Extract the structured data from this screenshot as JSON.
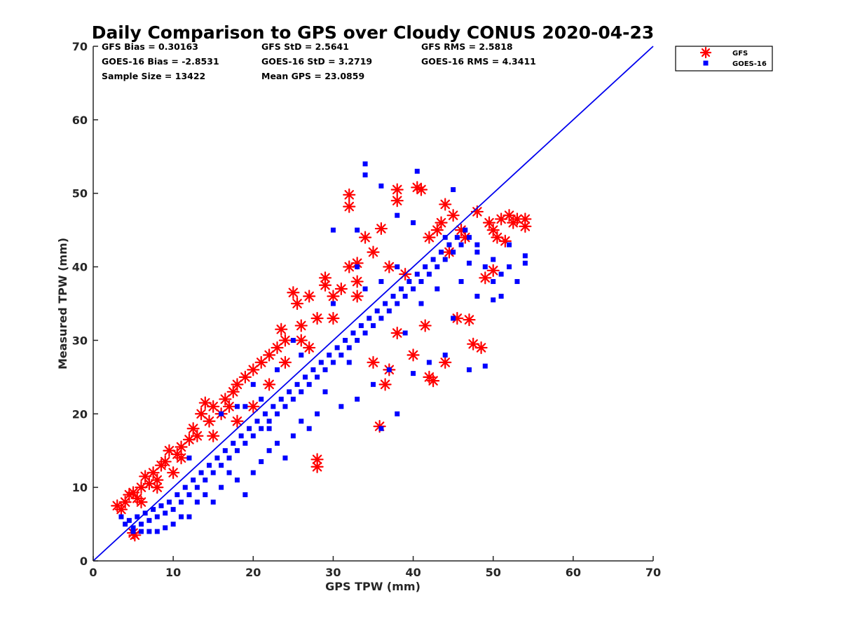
{
  "chart_data": {
    "type": "scatter",
    "title": "Daily Comparison to GPS over Cloudy CONUS 2020-04-23",
    "xlabel": "GPS TPW (mm)",
    "ylabel": "Measured TPW (mm)",
    "xlim": [
      0,
      70
    ],
    "ylim": [
      0,
      70
    ],
    "xticks": [
      "0",
      "10",
      "20",
      "30",
      "40",
      "50",
      "60",
      "70"
    ],
    "yticks": [
      "0",
      "10",
      "20",
      "30",
      "40",
      "50",
      "60",
      "70"
    ],
    "grid": false,
    "legend_position": "outside-top-right",
    "stats": [
      [
        "GFS Bias = 0.30163",
        "GFS StD = 2.5641",
        "GFS RMS = 2.5818"
      ],
      [
        "GOES-16 Bias = -2.8531",
        "GOES-16 StD = 3.2719",
        "GOES-16 RMS = 4.3411"
      ],
      [
        "Sample Size = 13422",
        "Mean GPS = 23.0859"
      ]
    ],
    "reference_line": {
      "x": [
        0,
        70
      ],
      "y": [
        0,
        70
      ],
      "color": "#0000ee"
    },
    "series": [
      {
        "name": "GFS",
        "marker": "asterisk",
        "color": "#ff0000",
        "points": [
          [
            3,
            7.5
          ],
          [
            3.5,
            7
          ],
          [
            4,
            8
          ],
          [
            4.5,
            9
          ],
          [
            5,
            9.3
          ],
          [
            5,
            3.8
          ],
          [
            5.2,
            3.5
          ],
          [
            5.5,
            8.5
          ],
          [
            6,
            10
          ],
          [
            6.5,
            11.5
          ],
          [
            7,
            10.5
          ],
          [
            7.5,
            12
          ],
          [
            8,
            11
          ],
          [
            8.5,
            13
          ],
          [
            9,
            13.5
          ],
          [
            9.5,
            15
          ],
          [
            10,
            12
          ],
          [
            10.5,
            14.5
          ],
          [
            11,
            15.5
          ],
          [
            12,
            16.5
          ],
          [
            12.5,
            18
          ],
          [
            13,
            17
          ],
          [
            13.5,
            20
          ],
          [
            14,
            21.5
          ],
          [
            14.5,
            19
          ],
          [
            15,
            21
          ],
          [
            16,
            20
          ],
          [
            16.5,
            22
          ],
          [
            17,
            21
          ],
          [
            17.5,
            23
          ],
          [
            18,
            24
          ],
          [
            19,
            25
          ],
          [
            20,
            26
          ],
          [
            21,
            27
          ],
          [
            22,
            28
          ],
          [
            23,
            29
          ],
          [
            23.5,
            31.5
          ],
          [
            24,
            30
          ],
          [
            25,
            36.5
          ],
          [
            25.5,
            35
          ],
          [
            26,
            32
          ],
          [
            27,
            36
          ],
          [
            28,
            33
          ],
          [
            28,
            13.8
          ],
          [
            28,
            12.8
          ],
          [
            29,
            37.5
          ],
          [
            29,
            38.5
          ],
          [
            30,
            36
          ],
          [
            31,
            37
          ],
          [
            32,
            40
          ],
          [
            32,
            49.8
          ],
          [
            32,
            48.2
          ],
          [
            33,
            40.5
          ],
          [
            33,
            38
          ],
          [
            34,
            44
          ],
          [
            35,
            42
          ],
          [
            35.8,
            18.3
          ],
          [
            36,
            45.2
          ],
          [
            36.5,
            24
          ],
          [
            37,
            26
          ],
          [
            38,
            50.5
          ],
          [
            38,
            49
          ],
          [
            39,
            39
          ],
          [
            40,
            28
          ],
          [
            40.5,
            50.8
          ],
          [
            41,
            50.5
          ],
          [
            41.5,
            32
          ],
          [
            42,
            44
          ],
          [
            42.5,
            24.5
          ],
          [
            43,
            45
          ],
          [
            43.5,
            46
          ],
          [
            44,
            48.5
          ],
          [
            44.5,
            42
          ],
          [
            45,
            47
          ],
          [
            45.5,
            33
          ],
          [
            46,
            45
          ],
          [
            46.5,
            44
          ],
          [
            47,
            32.8
          ],
          [
            47.5,
            29.5
          ],
          [
            48,
            47.5
          ],
          [
            48.5,
            29
          ],
          [
            49,
            38.5
          ],
          [
            49.5,
            46
          ],
          [
            50,
            45
          ],
          [
            50.5,
            44
          ],
          [
            51,
            46.5
          ],
          [
            51.5,
            43.5
          ],
          [
            52,
            47
          ],
          [
            52.5,
            46
          ],
          [
            53,
            46.5
          ],
          [
            54,
            45.5
          ],
          [
            54,
            46.5
          ],
          [
            50,
            39.5
          ],
          [
            44,
            27
          ],
          [
            42,
            25
          ],
          [
            38,
            31
          ],
          [
            35,
            27
          ],
          [
            30,
            33
          ],
          [
            27,
            29
          ],
          [
            22,
            24
          ],
          [
            18,
            19
          ],
          [
            15,
            17
          ],
          [
            11,
            14
          ],
          [
            8,
            10
          ],
          [
            6,
            8
          ],
          [
            20,
            21
          ],
          [
            24,
            27
          ],
          [
            26,
            30
          ],
          [
            33,
            36
          ],
          [
            37,
            40
          ]
        ]
      },
      {
        "name": "GOES-16",
        "marker": "square",
        "color": "#0000ff",
        "points": [
          [
            3.5,
            6
          ],
          [
            4,
            5
          ],
          [
            4.5,
            5.5
          ],
          [
            5,
            4.5
          ],
          [
            5.5,
            6
          ],
          [
            6,
            5
          ],
          [
            6.5,
            6.5
          ],
          [
            7,
            5.5
          ],
          [
            7.5,
            7
          ],
          [
            8,
            6
          ],
          [
            8.5,
            7.5
          ],
          [
            9,
            6.5
          ],
          [
            9.5,
            8
          ],
          [
            10,
            7
          ],
          [
            10.5,
            9
          ],
          [
            11,
            8
          ],
          [
            11.5,
            10
          ],
          [
            12,
            9
          ],
          [
            12.5,
            11
          ],
          [
            13,
            10
          ],
          [
            13.5,
            12
          ],
          [
            14,
            11
          ],
          [
            14.5,
            13
          ],
          [
            15,
            12
          ],
          [
            15.5,
            14
          ],
          [
            16,
            13
          ],
          [
            16.5,
            15
          ],
          [
            17,
            14
          ],
          [
            17.5,
            16
          ],
          [
            18,
            15
          ],
          [
            18.5,
            17
          ],
          [
            19,
            16
          ],
          [
            19.5,
            18
          ],
          [
            20,
            17
          ],
          [
            20.5,
            19
          ],
          [
            21,
            18
          ],
          [
            21.5,
            20
          ],
          [
            22,
            19
          ],
          [
            22.5,
            21
          ],
          [
            23,
            20
          ],
          [
            23.5,
            22
          ],
          [
            24,
            21
          ],
          [
            24.5,
            23
          ],
          [
            25,
            22
          ],
          [
            25.5,
            24
          ],
          [
            26,
            23
          ],
          [
            26.5,
            25
          ],
          [
            27,
            24
          ],
          [
            27.5,
            26
          ],
          [
            28,
            25
          ],
          [
            28.5,
            27
          ],
          [
            29,
            26
          ],
          [
            29.5,
            28
          ],
          [
            30,
            27
          ],
          [
            30.5,
            29
          ],
          [
            31,
            28
          ],
          [
            31.5,
            30
          ],
          [
            32,
            29
          ],
          [
            32.5,
            31
          ],
          [
            33,
            30
          ],
          [
            33.5,
            32
          ],
          [
            34,
            31
          ],
          [
            34.5,
            33
          ],
          [
            35,
            32
          ],
          [
            35.5,
            34
          ],
          [
            36,
            33
          ],
          [
            36.5,
            35
          ],
          [
            37,
            34
          ],
          [
            37.5,
            36
          ],
          [
            38,
            35
          ],
          [
            38.5,
            37
          ],
          [
            39,
            36
          ],
          [
            39.5,
            38
          ],
          [
            40,
            37
          ],
          [
            40.5,
            39
          ],
          [
            41,
            38
          ],
          [
            41.5,
            40
          ],
          [
            42,
            39
          ],
          [
            42.5,
            41
          ],
          [
            43,
            40
          ],
          [
            43.5,
            42
          ],
          [
            44,
            41
          ],
          [
            44.5,
            43
          ],
          [
            45,
            42
          ],
          [
            45.5,
            44
          ],
          [
            46,
            43
          ],
          [
            46.5,
            45
          ],
          [
            47,
            44
          ],
          [
            48,
            42
          ],
          [
            49,
            40
          ],
          [
            50,
            41
          ],
          [
            51,
            39
          ],
          [
            52,
            40
          ],
          [
            53,
            38
          ],
          [
            54,
            41.5
          ],
          [
            54,
            40.5
          ],
          [
            34,
            54
          ],
          [
            34,
            52.5
          ],
          [
            40.5,
            53
          ],
          [
            45,
            50.5
          ],
          [
            33,
            45
          ],
          [
            30,
            45
          ],
          [
            36,
            51
          ],
          [
            38,
            47
          ],
          [
            40,
            46
          ],
          [
            44,
            44
          ],
          [
            48,
            36
          ],
          [
            50,
            35.5
          ],
          [
            51,
            36
          ],
          [
            47,
            26
          ],
          [
            49,
            26.5
          ],
          [
            44,
            28
          ],
          [
            42,
            27
          ],
          [
            40,
            25.5
          ],
          [
            37,
            26
          ],
          [
            35,
            24
          ],
          [
            28,
            20
          ],
          [
            26,
            19
          ],
          [
            25,
            17
          ],
          [
            23,
            16
          ],
          [
            22,
            15
          ],
          [
            21,
            13.5
          ],
          [
            20,
            12
          ],
          [
            19,
            9
          ],
          [
            18,
            11
          ],
          [
            16,
            10
          ],
          [
            14,
            9
          ],
          [
            13,
            8
          ],
          [
            12,
            6
          ],
          [
            10,
            5
          ],
          [
            9,
            4.5
          ],
          [
            8,
            4
          ],
          [
            7,
            4
          ],
          [
            6,
            4
          ],
          [
            5,
            4
          ],
          [
            36,
            18
          ],
          [
            38,
            20
          ],
          [
            33,
            22
          ],
          [
            31,
            21
          ],
          [
            29,
            23
          ],
          [
            27,
            18
          ],
          [
            24,
            14
          ],
          [
            22,
            18
          ],
          [
            17,
            12
          ],
          [
            15,
            8
          ],
          [
            11,
            6
          ],
          [
            30,
            35
          ],
          [
            34,
            37
          ],
          [
            36,
            38
          ],
          [
            38,
            40
          ],
          [
            41,
            35
          ],
          [
            43,
            37
          ],
          [
            45,
            33
          ],
          [
            46,
            38
          ],
          [
            48,
            43
          ],
          [
            52,
            43
          ],
          [
            47,
            40.5
          ],
          [
            50,
            38
          ],
          [
            39,
            31
          ],
          [
            32,
            27
          ],
          [
            26,
            28
          ],
          [
            18,
            21
          ],
          [
            16,
            20
          ],
          [
            12,
            14
          ],
          [
            20,
            24
          ],
          [
            23,
            26
          ],
          [
            25,
            30
          ],
          [
            21,
            22
          ],
          [
            19,
            21
          ],
          [
            33,
            40
          ]
        ]
      }
    ]
  }
}
